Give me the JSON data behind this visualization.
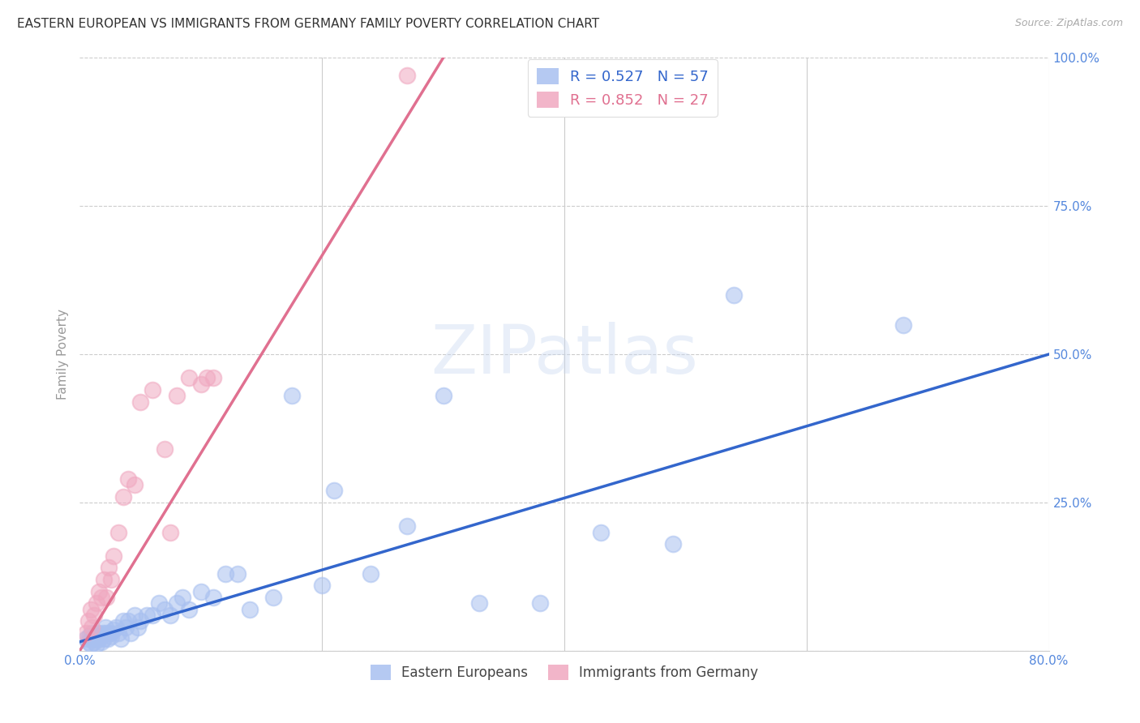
{
  "title": "EASTERN EUROPEAN VS IMMIGRANTS FROM GERMANY FAMILY POVERTY CORRELATION CHART",
  "source": "Source: ZipAtlas.com",
  "ylabel": "Family Poverty",
  "xlim": [
    0,
    0.8
  ],
  "ylim": [
    0,
    1.0
  ],
  "xticks": [
    0.0,
    0.2,
    0.4,
    0.6,
    0.8
  ],
  "xticklabels": [
    "0.0%",
    "",
    "",
    "",
    "80.0%"
  ],
  "yticks": [
    0.0,
    0.25,
    0.5,
    0.75,
    1.0
  ],
  "yticklabels": [
    "",
    "25.0%",
    "50.0%",
    "75.0%",
    "100.0%"
  ],
  "watermark": "ZIPatlas",
  "legend_entries": [
    {
      "label": "Eastern Europeans",
      "color": "#a8c0f0",
      "R": "0.527",
      "N": "57"
    },
    {
      "label": "Immigrants from Germany",
      "color": "#f0a8c0",
      "R": "0.852",
      "N": "27"
    }
  ],
  "blue_scatter_x": [
    0.005,
    0.007,
    0.008,
    0.009,
    0.01,
    0.01,
    0.012,
    0.013,
    0.014,
    0.015,
    0.016,
    0.017,
    0.018,
    0.019,
    0.02,
    0.021,
    0.022,
    0.023,
    0.025,
    0.026,
    0.028,
    0.03,
    0.032,
    0.034,
    0.036,
    0.038,
    0.04,
    0.042,
    0.045,
    0.048,
    0.05,
    0.055,
    0.06,
    0.065,
    0.07,
    0.075,
    0.08,
    0.085,
    0.09,
    0.1,
    0.11,
    0.12,
    0.13,
    0.14,
    0.16,
    0.175,
    0.2,
    0.21,
    0.24,
    0.27,
    0.3,
    0.33,
    0.38,
    0.43,
    0.49,
    0.54,
    0.68
  ],
  "blue_scatter_y": [
    0.02,
    0.015,
    0.025,
    0.01,
    0.03,
    0.02,
    0.015,
    0.025,
    0.01,
    0.03,
    0.02,
    0.025,
    0.015,
    0.03,
    0.02,
    0.04,
    0.03,
    0.02,
    0.03,
    0.025,
    0.035,
    0.04,
    0.03,
    0.02,
    0.05,
    0.04,
    0.05,
    0.03,
    0.06,
    0.04,
    0.05,
    0.06,
    0.06,
    0.08,
    0.07,
    0.06,
    0.08,
    0.09,
    0.07,
    0.1,
    0.09,
    0.13,
    0.13,
    0.07,
    0.09,
    0.43,
    0.11,
    0.27,
    0.13,
    0.21,
    0.43,
    0.08,
    0.08,
    0.2,
    0.18,
    0.6,
    0.55
  ],
  "pink_scatter_x": [
    0.005,
    0.007,
    0.009,
    0.01,
    0.012,
    0.014,
    0.016,
    0.018,
    0.02,
    0.022,
    0.024,
    0.026,
    0.028,
    0.032,
    0.036,
    0.04,
    0.045,
    0.05,
    0.06,
    0.07,
    0.075,
    0.08,
    0.09,
    0.1,
    0.105,
    0.11,
    0.27
  ],
  "pink_scatter_y": [
    0.03,
    0.05,
    0.07,
    0.04,
    0.06,
    0.08,
    0.1,
    0.09,
    0.12,
    0.09,
    0.14,
    0.12,
    0.16,
    0.2,
    0.26,
    0.29,
    0.28,
    0.42,
    0.44,
    0.34,
    0.2,
    0.43,
    0.46,
    0.45,
    0.46,
    0.46,
    0.97
  ],
  "blue_line_x": [
    0.0,
    0.8
  ],
  "blue_line_y": [
    0.015,
    0.5
  ],
  "pink_line_x": [
    0.0,
    0.3
  ],
  "pink_line_y": [
    0.0,
    1.0
  ],
  "scatter_size": 200,
  "scatter_alpha": 0.55,
  "blue_color": "#a8c0f0",
  "pink_color": "#f0a8c0",
  "blue_line_color": "#3366cc",
  "pink_line_color": "#e07090",
  "grid_color": "#cccccc",
  "background_color": "#ffffff",
  "title_fontsize": 11,
  "axis_label_fontsize": 11,
  "tick_fontsize": 11,
  "ylabel_color": "#999999",
  "tick_color": "#5588dd"
}
